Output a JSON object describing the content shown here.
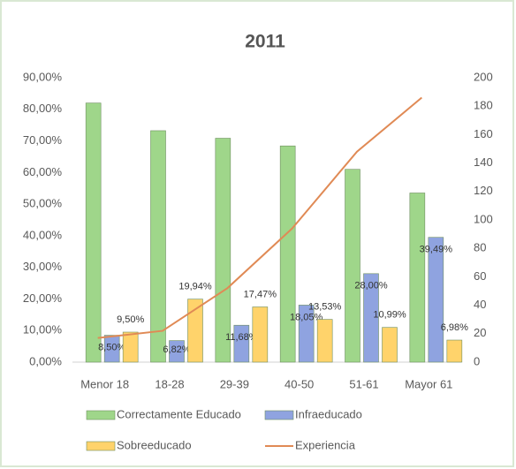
{
  "chart_data": {
    "type": "bar",
    "title": "2011",
    "categories": [
      "Menor 18",
      "18-28",
      "29-39",
      "40-50",
      "51-61",
      "Mayor 61"
    ],
    "series": [
      {
        "name": "Correctamente Educado",
        "type": "bar",
        "color": "#9fd68a",
        "values": [
          82.0,
          73.24,
          70.85,
          68.42,
          61.01,
          53.53
        ]
      },
      {
        "name": "Infraeducado",
        "type": "bar",
        "color": "#8fa3e0",
        "values": [
          8.5,
          6.82,
          11.68,
          18.05,
          28.0,
          39.49
        ],
        "value_labels": [
          "8,50%",
          "6,82%",
          "11,68%",
          "18,05%",
          "28,00%",
          "39,49%"
        ]
      },
      {
        "name": "Sobreeducado",
        "type": "bar",
        "color": "#ffd36b",
        "values": [
          9.5,
          19.94,
          17.47,
          13.53,
          10.99,
          6.98
        ],
        "value_labels": [
          "9,50%",
          "19,94%",
          "17,47%",
          "13,53%",
          "10,99%",
          "6,98%"
        ]
      },
      {
        "name": "Experiencia",
        "type": "line",
        "axis": "y2",
        "color": "#e08a55",
        "values": [
          17,
          22,
          52,
          94,
          148,
          186
        ]
      }
    ],
    "ylim": [
      0,
      90
    ],
    "yticks": [
      {
        "value": 0,
        "label": "0,00%"
      },
      {
        "value": 10,
        "label": "10,00%"
      },
      {
        "value": 20,
        "label": "20,00%"
      },
      {
        "value": 30,
        "label": "30,00%"
      },
      {
        "value": 40,
        "label": "40,00%"
      },
      {
        "value": 50,
        "label": "50,00%"
      },
      {
        "value": 60,
        "label": "60,00%"
      },
      {
        "value": 70,
        "label": "70,00%"
      },
      {
        "value": 80,
        "label": "80,00%"
      },
      {
        "value": 90,
        "label": "90,00%"
      }
    ],
    "y2lim": [
      0,
      200
    ],
    "y2ticks": [
      0,
      20,
      40,
      60,
      80,
      100,
      120,
      140,
      160,
      180,
      200
    ],
    "grid": false
  }
}
